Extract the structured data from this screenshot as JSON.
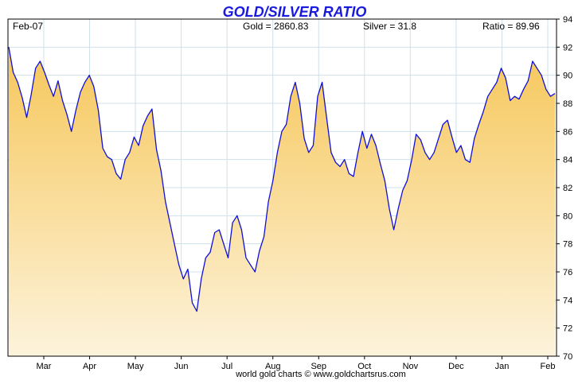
{
  "chart_data": {
    "type": "area",
    "title": "GOLD/SILVER RATIO",
    "header": {
      "period": "Feb-07",
      "gold": "Gold = 2860.83",
      "silver": "Silver = 31.8",
      "ratio": "Ratio = 89.96"
    },
    "credit": "world gold charts © www.goldchartsrus.com",
    "xlabel": "",
    "ylabel": "",
    "ylim": [
      70,
      94
    ],
    "yticks": [
      70,
      72,
      74,
      76,
      78,
      80,
      82,
      84,
      86,
      88,
      90,
      92,
      94
    ],
    "x_month_ticks": [
      "Mar",
      "Apr",
      "May",
      "Jun",
      "Jul",
      "Aug",
      "Sep",
      "Oct",
      "Nov",
      "Dec",
      "Jan",
      "Feb"
    ],
    "grid": true,
    "colors": {
      "line": "#1010d8",
      "fill_top": "#f6c75a",
      "fill_bottom": "#fdf3dc",
      "title": "#1a1adf",
      "grid": "#cfe0ea"
    },
    "series": [
      {
        "values": [
          92.0,
          90.2,
          89.5,
          88.4,
          87.0,
          88.6,
          90.5,
          91.0,
          90.2,
          89.3,
          88.5,
          89.6,
          88.2,
          87.2,
          86.0,
          87.5,
          88.8,
          89.5,
          90.0,
          89.2,
          87.5,
          84.8,
          84.2,
          84.0,
          83.0,
          82.6,
          84.0,
          84.5,
          85.6,
          85.0,
          86.4,
          87.1,
          87.6,
          84.7,
          83.2,
          81.0,
          79.5,
          78.0,
          76.5,
          75.5,
          76.2,
          73.8,
          73.2,
          75.5,
          77.0,
          77.4,
          78.8,
          79.0,
          78.0,
          77.0,
          79.5,
          80.0,
          79.0,
          77.0,
          76.5,
          76.0,
          77.5,
          78.5,
          81.0,
          82.5,
          84.5,
          86.0,
          86.5,
          88.5,
          89.5,
          88.0,
          85.5,
          84.5,
          85.0,
          88.5,
          89.5,
          87.0,
          84.5,
          83.8,
          83.5,
          84.0,
          83.0,
          82.8,
          84.5,
          86.0,
          84.8,
          85.8,
          85.0,
          83.7,
          82.5,
          80.5,
          79.0,
          80.5,
          81.8,
          82.5,
          84.0,
          85.8,
          85.4,
          84.5,
          84.0,
          84.5,
          85.5,
          86.5,
          86.8,
          85.6,
          84.5,
          85.0,
          84.0,
          83.8,
          85.5,
          86.5,
          87.4,
          88.5,
          89.0,
          89.5,
          90.5,
          89.8,
          88.2,
          88.5,
          88.3,
          89.0,
          89.6,
          91.0,
          90.5,
          90.0,
          89.0,
          88.5,
          88.7
        ]
      }
    ]
  }
}
